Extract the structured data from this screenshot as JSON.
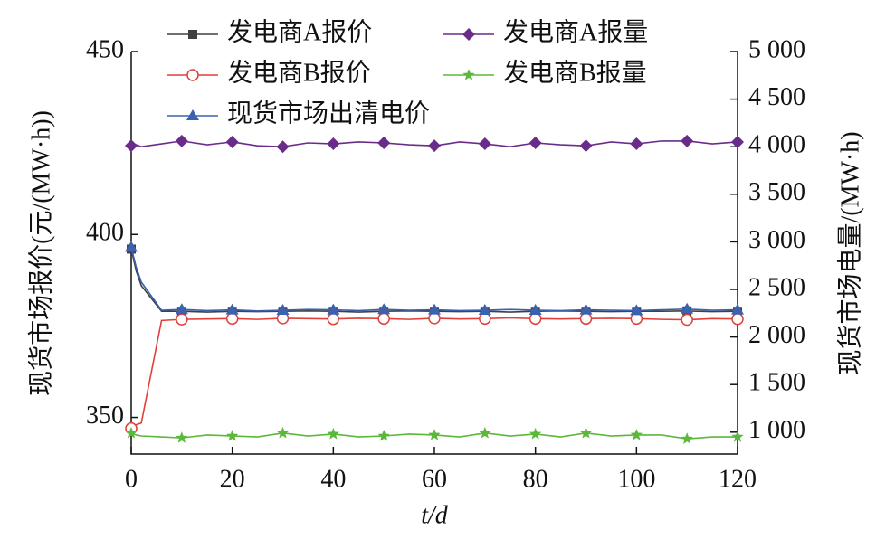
{
  "chart_data": {
    "type": "line",
    "x_label": "t/d",
    "y_label": "现货市场报价(元/(MW·h))",
    "y2_label": "现货市场电量/(MW·h)",
    "x": [
      0,
      1,
      2,
      6,
      10,
      15,
      20,
      25,
      30,
      35,
      40,
      45,
      50,
      55,
      60,
      65,
      70,
      75,
      80,
      85,
      90,
      95,
      100,
      105,
      110,
      115,
      120
    ],
    "xlim": [
      0,
      120
    ],
    "xticks": [
      0,
      20,
      40,
      60,
      80,
      100,
      120
    ],
    "ylim": [
      340,
      450
    ],
    "yticks": [
      350,
      400,
      450
    ],
    "y2lim": [
      770,
      5000
    ],
    "y2ticks": [
      {
        "value": 1000,
        "label": "1 000"
      },
      {
        "value": 1500,
        "label": "1 500"
      },
      {
        "value": 2000,
        "label": "2 000"
      },
      {
        "value": 2500,
        "label": "2 500"
      },
      {
        "value": 3000,
        "label": "3 000"
      },
      {
        "value": 3500,
        "label": "3 500"
      },
      {
        "value": 4000,
        "label": "4 000"
      },
      {
        "value": 4500,
        "label": "4 500"
      },
      {
        "value": 5000,
        "label": "5 000"
      }
    ],
    "series": [
      {
        "name": "发电商A报价",
        "color": "#404040",
        "marker": "square",
        "values": [
          396,
          390,
          386,
          379,
          379,
          378.8,
          379,
          378.9,
          379,
          379.1,
          379,
          378.8,
          379,
          379.1,
          379,
          378.9,
          379,
          378.8,
          379,
          379.1,
          379,
          378.9,
          379,
          379,
          379.1,
          378.9,
          379
        ]
      },
      {
        "name": "发电商A报量",
        "color": "#6a2c8a",
        "marker": "diamond",
        "axis": "y2",
        "values": [
          4010,
          4020,
          4000,
          4030,
          4060,
          4020,
          4050,
          4010,
          4000,
          4040,
          4030,
          4050,
          4040,
          4020,
          4010,
          4050,
          4030,
          4000,
          4040,
          4020,
          4010,
          4050,
          4030,
          4060,
          4060,
          4030,
          4050
        ]
      },
      {
        "name": "发电商B报价",
        "color": "#e0403a",
        "marker": "circle",
        "values": [
          347,
          348,
          348.5,
          376.5,
          376.8,
          376.9,
          377,
          376.8,
          377.1,
          377,
          376.9,
          377.1,
          377,
          376.8,
          377.1,
          376.9,
          377,
          377.2,
          377,
          376.9,
          377,
          377.1,
          377,
          376.8,
          376.7,
          377,
          376.9
        ]
      },
      {
        "name": "发电商B报量",
        "color": "#5cb83a",
        "marker": "star",
        "axis": "y2",
        "values": [
          990,
          970,
          960,
          950,
          940,
          970,
          960,
          950,
          990,
          960,
          980,
          950,
          960,
          980,
          970,
          950,
          990,
          960,
          980,
          950,
          990,
          960,
          970,
          970,
          930,
          950,
          950
        ]
      },
      {
        "name": "现货市场出清电价",
        "color": "#3a62b0",
        "marker": "triangle",
        "values": [
          396.5,
          391,
          387,
          379.3,
          379.5,
          379.2,
          379.4,
          379.1,
          379.3,
          379.5,
          379.4,
          379.2,
          379.5,
          379.3,
          379.4,
          379.2,
          379.3,
          379.5,
          379.3,
          379.2,
          379.4,
          379.3,
          379.2,
          379.4,
          379.6,
          379.3,
          379.4
        ]
      }
    ]
  }
}
